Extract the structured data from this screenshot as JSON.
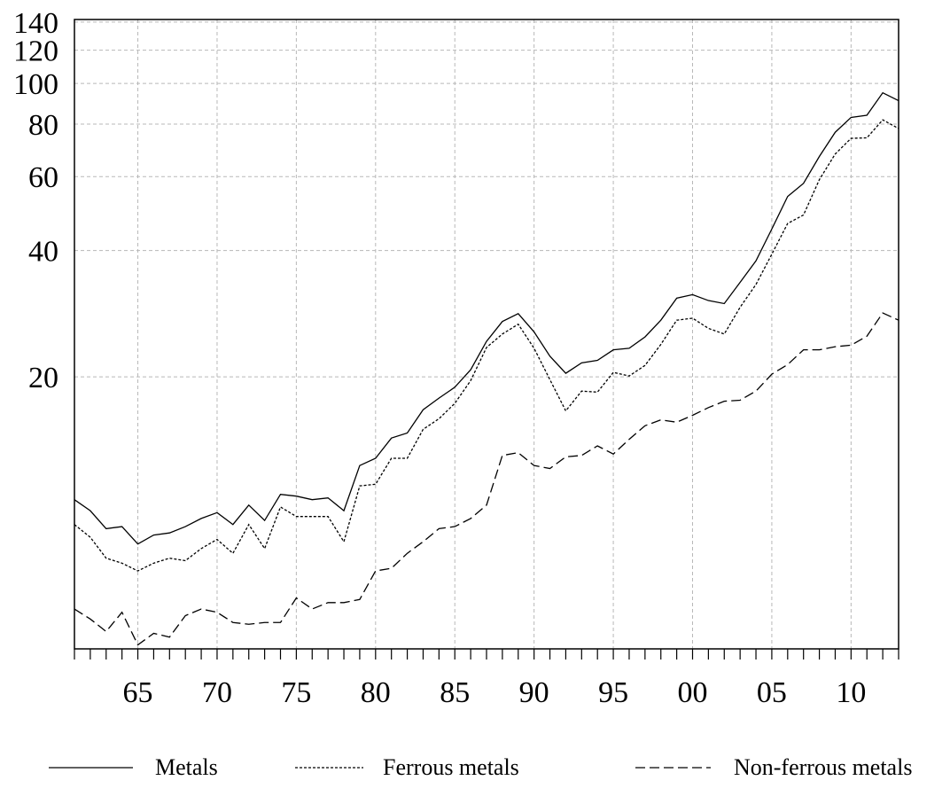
{
  "chart_data": {
    "type": "line",
    "title": "",
    "xlabel": "",
    "ylabel": "",
    "y_scale": "log",
    "grid": true,
    "legend_position": "bottom",
    "xlim": [
      1961,
      2013
    ],
    "ylim": [
      4.5,
      142
    ],
    "y_ticks": [
      {
        "value": 20,
        "label": "20"
      },
      {
        "value": 40,
        "label": "40"
      },
      {
        "value": 60,
        "label": "60"
      },
      {
        "value": 80,
        "label": "80"
      },
      {
        "value": 100,
        "label": "100"
      },
      {
        "value": 120,
        "label": "120"
      },
      {
        "value": 140,
        "label": "140"
      }
    ],
    "x_ticks": [
      {
        "value": 1965,
        "label": "65"
      },
      {
        "value": 1970,
        "label": "70"
      },
      {
        "value": 1975,
        "label": "75"
      },
      {
        "value": 1980,
        "label": "80"
      },
      {
        "value": 1985,
        "label": "85"
      },
      {
        "value": 1990,
        "label": "90"
      },
      {
        "value": 1995,
        "label": "95"
      },
      {
        "value": 2000,
        "label": "00"
      },
      {
        "value": 2005,
        "label": "05"
      },
      {
        "value": 2010,
        "label": "10"
      }
    ],
    "x": [
      1961,
      1962,
      1963,
      1964,
      1965,
      1966,
      1967,
      1968,
      1969,
      1970,
      1971,
      1972,
      1973,
      1974,
      1975,
      1976,
      1977,
      1978,
      1979,
      1980,
      1981,
      1982,
      1983,
      1984,
      1985,
      1986,
      1987,
      1988,
      1989,
      1990,
      1991,
      1992,
      1993,
      1994,
      1995,
      1996,
      1997,
      1998,
      1999,
      2000,
      2001,
      2002,
      2003,
      2004,
      2005,
      2006,
      2007,
      2008,
      2009,
      2010,
      2011,
      2012,
      2013
    ],
    "series": [
      {
        "name": "Metals",
        "style": "solid",
        "values": [
          10.2,
          9.6,
          8.7,
          8.8,
          8.0,
          8.4,
          8.5,
          8.8,
          9.2,
          9.5,
          8.9,
          9.9,
          9.1,
          10.5,
          10.4,
          10.2,
          10.3,
          9.6,
          12.3,
          12.8,
          14.3,
          14.7,
          16.7,
          17.8,
          18.9,
          20.8,
          24.3,
          27.1,
          28.3,
          25.6,
          22.4,
          20.4,
          21.6,
          21.9,
          23.2,
          23.4,
          24.9,
          27.3,
          30.8,
          31.4,
          30.4,
          29.9,
          33.6,
          37.8,
          45.0,
          53.8,
          57.8,
          67.0,
          76.5,
          83.0,
          84.0,
          95.0,
          91.0
        ]
      },
      {
        "name": "Ferrous metals",
        "style": "dotted",
        "values": [
          8.9,
          8.3,
          7.4,
          7.2,
          6.9,
          7.2,
          7.4,
          7.3,
          7.8,
          8.2,
          7.6,
          8.9,
          7.8,
          9.8,
          9.3,
          9.3,
          9.3,
          8.1,
          11.0,
          11.1,
          12.8,
          12.8,
          15.0,
          15.9,
          17.3,
          19.6,
          23.5,
          25.3,
          26.7,
          23.4,
          19.7,
          16.6,
          18.5,
          18.4,
          20.5,
          20.1,
          21.3,
          23.9,
          27.3,
          27.6,
          26.1,
          25.3,
          29.3,
          33.2,
          39.2,
          46.4,
          48.6,
          59.0,
          67.9,
          74.0,
          74.2,
          81.9,
          78.1
        ]
      },
      {
        "name": "Non-ferrous metals",
        "style": "dashed",
        "values": [
          5.6,
          5.3,
          4.95,
          5.5,
          4.6,
          4.9,
          4.8,
          5.4,
          5.6,
          5.5,
          5.2,
          5.15,
          5.2,
          5.2,
          5.95,
          5.6,
          5.8,
          5.8,
          5.9,
          6.9,
          7.0,
          7.6,
          8.1,
          8.7,
          8.8,
          9.2,
          9.9,
          13.0,
          13.2,
          12.3,
          12.1,
          12.9,
          13.0,
          13.7,
          13.1,
          14.2,
          15.3,
          15.8,
          15.6,
          16.2,
          16.9,
          17.5,
          17.6,
          18.5,
          20.3,
          21.4,
          23.2,
          23.2,
          23.6,
          23.8,
          25.0,
          28.4,
          27.3
        ]
      }
    ]
  }
}
